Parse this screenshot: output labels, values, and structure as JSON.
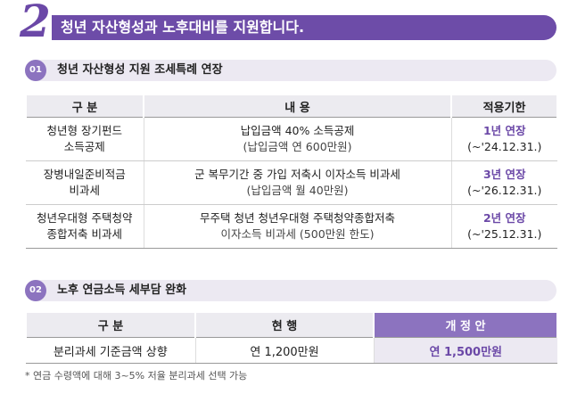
{
  "banner": {
    "number": "2",
    "title": "청년 자산형성과 노후대비를 지원합니다."
  },
  "section1": {
    "badge": "01",
    "title": "청년 자산형성 지원 조세특례 연장",
    "headers": [
      "구 분",
      "내 용",
      "적용기한"
    ],
    "rows": [
      {
        "cat1": "청년형 장기펀드",
        "cat2": "소득공제",
        "content1": "납입금액 40% 소득공제",
        "content2": "(납입금액 연 600만원)",
        "ext": "1년 연장",
        "deadline": "(~'24.12.31.)"
      },
      {
        "cat1": "장병내일준비적금",
        "cat2": "비과세",
        "content1": "군 복무기간 중 가입 저축시 이자소득 비과세",
        "content2": "(납입금액 월 40만원)",
        "ext": "3년 연장",
        "deadline": "(~'26.12.31.)"
      },
      {
        "cat1": "청년우대형 주택청약",
        "cat2": "종합저축 비과세",
        "content1": "무주택 청년 청년우대형 주택청약종합저축",
        "content2": "이자소득 비과세 (500만원 한도)",
        "ext": "2년 연장",
        "deadline": "(~'25.12.31.)"
      }
    ]
  },
  "section2": {
    "badge": "02",
    "title": "노후 연금소득 세부담 완화",
    "headers": [
      "구 분",
      "현 행",
      "개 정 안"
    ],
    "row": {
      "category": "분리과세 기준금액 상향",
      "current": "연 1,200만원",
      "revised": "연 1,500만원"
    }
  },
  "footnote": "* 연금 수령액에 대해 3~5% 저율 분리과세 선택 가능",
  "colors": {
    "accent": "#6d4ca8",
    "badge": "#8c73bf",
    "header_bg": "#ecebf0"
  }
}
